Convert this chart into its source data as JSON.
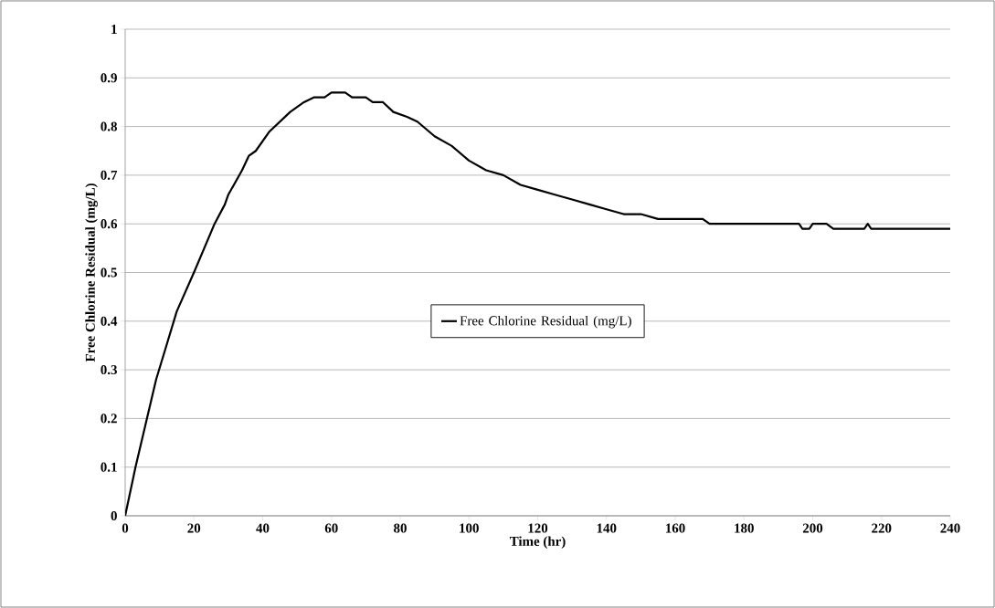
{
  "chart_data": {
    "type": "line",
    "xlabel": "Time (hr)",
    "ylabel": "Free Chlorine Residual (mg/L)",
    "x": [
      0,
      3,
      6,
      9,
      12,
      15,
      20,
      23,
      26,
      29,
      30,
      34,
      36,
      38,
      42,
      45,
      48,
      52,
      55,
      58,
      60,
      64,
      66,
      70,
      72,
      75,
      78,
      82,
      85,
      90,
      95,
      100,
      105,
      110,
      115,
      120,
      125,
      130,
      135,
      140,
      145,
      150,
      155,
      168,
      170,
      196,
      197,
      199,
      200,
      204,
      206,
      215,
      216,
      217,
      240
    ],
    "series": [
      {
        "name": "Free Chlorine Residual (mg/L)",
        "color": "#000000",
        "values": [
          0,
          0.1,
          0.19,
          0.28,
          0.35,
          0.42,
          0.5,
          0.55,
          0.6,
          0.64,
          0.66,
          0.71,
          0.74,
          0.75,
          0.79,
          0.81,
          0.83,
          0.85,
          0.86,
          0.86,
          0.87,
          0.87,
          0.86,
          0.86,
          0.85,
          0.85,
          0.83,
          0.82,
          0.81,
          0.78,
          0.76,
          0.73,
          0.71,
          0.7,
          0.68,
          0.67,
          0.66,
          0.65,
          0.64,
          0.63,
          0.62,
          0.62,
          0.61,
          0.61,
          0.6,
          0.6,
          0.59,
          0.59,
          0.6,
          0.6,
          0.59,
          0.59,
          0.6,
          0.59,
          0.59
        ]
      }
    ],
    "xlim": [
      0,
      240
    ],
    "ylim": [
      0,
      1
    ],
    "xticks": [
      0,
      20,
      40,
      60,
      80,
      100,
      120,
      140,
      160,
      180,
      200,
      220,
      240
    ],
    "yticks": [
      0,
      0.1,
      0.2,
      0.3,
      0.4,
      0.5,
      0.6,
      0.7,
      0.8,
      0.9,
      1
    ],
    "grid": "y",
    "legend": "center"
  }
}
